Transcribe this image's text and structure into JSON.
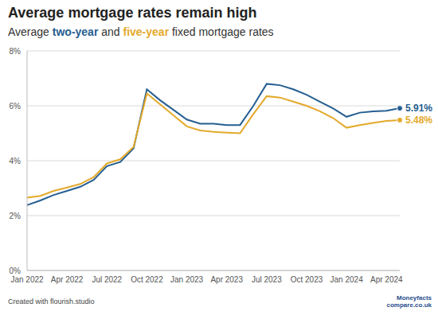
{
  "chart_data": {
    "type": "line",
    "title": "Average mortgage rates remain high",
    "subtitle": "Average two-year and five-year fixed mortgage rates",
    "footer": "Created with flourish.studio",
    "logo": [
      "Moneyfacts",
      "compare.co.uk"
    ],
    "categories": [
      "Jan 2022",
      null,
      null,
      "Apr 2022",
      null,
      null,
      "Jul 2022",
      null,
      null,
      "Oct 2022",
      null,
      null,
      "Jan 2023",
      null,
      null,
      "Apr 2023",
      null,
      null,
      "Jul 2023",
      null,
      null,
      "Oct 2023",
      null,
      null,
      "Jan 2024",
      null,
      null,
      "Apr 2024",
      null
    ],
    "series": [
      {
        "name": "two-year",
        "color": "#255e91",
        "values": [
          2.38,
          2.55,
          2.75,
          2.9,
          3.05,
          3.3,
          3.8,
          3.95,
          4.45,
          6.6,
          6.2,
          5.85,
          5.5,
          5.35,
          5.35,
          5.3,
          5.3,
          6.0,
          6.8,
          6.75,
          6.6,
          6.4,
          6.15,
          5.9,
          5.6,
          5.75,
          5.8,
          5.82,
          5.91
        ],
        "value_labels": [
          null,
          null,
          null,
          null,
          null,
          null,
          null,
          null,
          null,
          null,
          null,
          null,
          null,
          null,
          null,
          null,
          null,
          null,
          null,
          null,
          null,
          null,
          null,
          null,
          null,
          null,
          null,
          null,
          "5.91%"
        ]
      },
      {
        "name": "five-year",
        "color": "#e3a92b",
        "values": [
          2.65,
          2.72,
          2.9,
          3.02,
          3.15,
          3.4,
          3.9,
          4.05,
          4.5,
          6.45,
          6.05,
          5.65,
          5.25,
          5.1,
          5.05,
          5.02,
          5.0,
          5.7,
          6.35,
          6.3,
          6.15,
          6.0,
          5.8,
          5.55,
          5.2,
          5.3,
          5.38,
          5.45,
          5.48
        ],
        "value_labels": [
          null,
          null,
          null,
          null,
          null,
          null,
          null,
          null,
          null,
          null,
          null,
          null,
          null,
          null,
          null,
          null,
          null,
          null,
          null,
          null,
          null,
          null,
          null,
          null,
          null,
          null,
          null,
          null,
          "5.48%"
        ]
      }
    ],
    "ylim": [
      0,
      8
    ],
    "yticks": [
      {
        "value": 0,
        "label": "0%"
      },
      {
        "value": 2,
        "label": "2%"
      },
      {
        "value": 4,
        "label": "4%"
      },
      {
        "value": 6,
        "label": "6%"
      },
      {
        "value": 8,
        "label": "8%"
      }
    ],
    "grid": true,
    "data_labels": true
  }
}
